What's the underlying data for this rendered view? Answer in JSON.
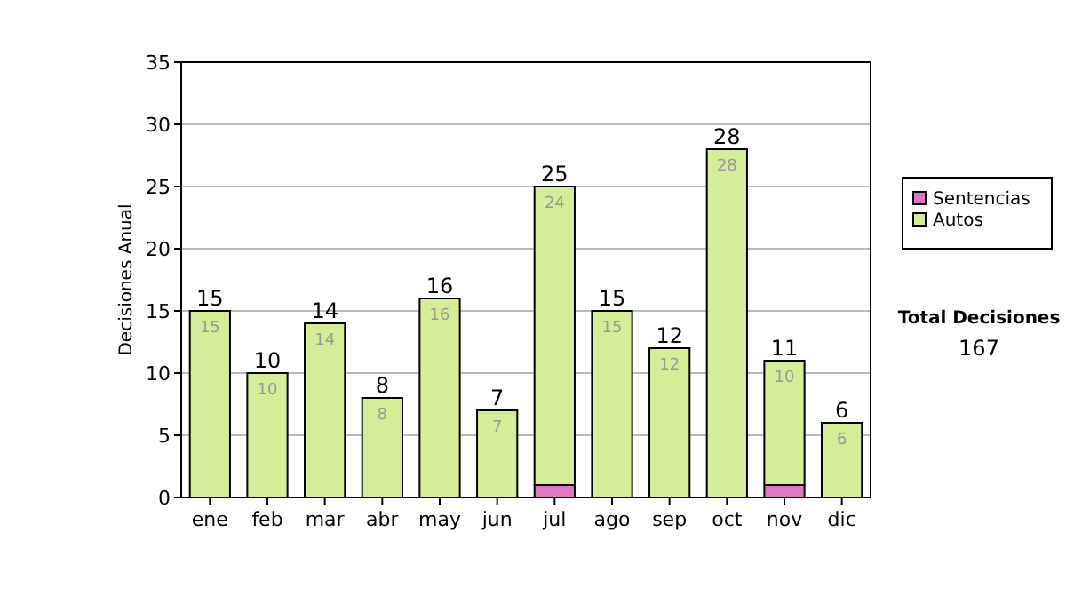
{
  "chart_data": {
    "type": "bar",
    "ylabel": "Decisiones Anual",
    "categories": [
      "ene",
      "feb",
      "mar",
      "abr",
      "may",
      "jun",
      "jul",
      "ago",
      "sep",
      "oct",
      "nov",
      "dic"
    ],
    "series": [
      {
        "name": "Sentencias",
        "color": "#e075c0",
        "values": [
          0,
          0,
          0,
          0,
          0,
          0,
          1,
          0,
          0,
          0,
          1,
          0
        ]
      },
      {
        "name": "Autos",
        "color": "#d5ec98",
        "values": [
          15,
          10,
          14,
          8,
          16,
          7,
          24,
          15,
          12,
          28,
          10,
          6
        ],
        "value_labels": [
          "15",
          "10",
          "14",
          "8",
          "16",
          "7",
          "24",
          "15",
          "12",
          "28",
          "10",
          "6"
        ]
      }
    ],
    "stacked": true,
    "totals": [
      "15",
      "10",
      "14",
      "8",
      "16",
      "7",
      "25",
      "15",
      "12",
      "28",
      "11",
      "6"
    ],
    "ylim": [
      0,
      35
    ],
    "yticks": [
      0,
      5,
      10,
      15,
      20,
      25,
      30,
      35
    ],
    "grid": "y",
    "legend": "right",
    "annotations": [
      "Total Decisiones",
      "167"
    ]
  }
}
